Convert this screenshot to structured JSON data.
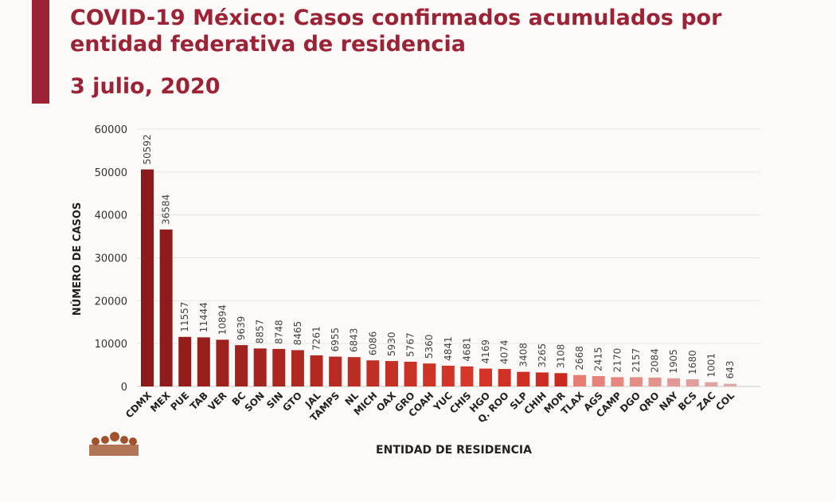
{
  "title": "COVID-19 México: Casos confirmados acumulados por entidad federativa de residencia",
  "date": "3 julio, 2020",
  "chart_data": {
    "type": "bar",
    "title": "COVID-19 México: Casos confirmados acumulados por entidad federativa de residencia",
    "subtitle": "3 julio, 2020",
    "xlabel": "ENTIDAD DE RESIDENCIA",
    "ylabel": "NÚMERO DE CASOS",
    "ylim": [
      0,
      60000
    ],
    "yticks": [
      0,
      10000,
      20000,
      30000,
      40000,
      50000,
      60000
    ],
    "grid": true,
    "categories": [
      "CDMX",
      "MEX",
      "PUE",
      "TAB",
      "VER",
      "BC",
      "SON",
      "SIN",
      "GTO",
      "JAL",
      "TAMPS",
      "NL",
      "MICH",
      "OAX",
      "GRO",
      "COAH",
      "YUC",
      "CHIS",
      "HGO",
      "Q. ROO",
      "SLP",
      "CHIH",
      "MOR",
      "TLAX",
      "AGS",
      "CAMP",
      "DGO",
      "QRO",
      "NAY",
      "BCS",
      "ZAC",
      "COL"
    ],
    "values": [
      50592,
      36584,
      11557,
      11444,
      10894,
      9639,
      8857,
      8748,
      8465,
      7261,
      6955,
      6843,
      6086,
      5930,
      5767,
      5360,
      4841,
      4681,
      4169,
      4074,
      3408,
      3265,
      3108,
      2668,
      2415,
      2170,
      2157,
      2084,
      1905,
      1680,
      1001,
      643
    ]
  }
}
